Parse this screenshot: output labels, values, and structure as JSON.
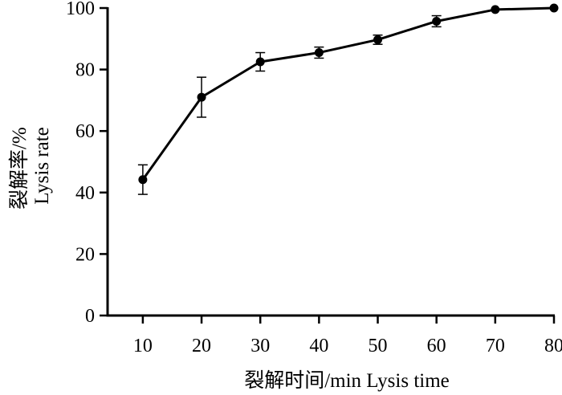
{
  "chart_data": {
    "type": "line",
    "title": "",
    "xlabel": "裂解时间/min  Lysis time",
    "ylabel_lines": [
      "裂解率/%",
      "Lysis rate"
    ],
    "x": [
      10,
      20,
      30,
      40,
      50,
      60,
      70,
      80
    ],
    "x_ticks": [
      10,
      20,
      30,
      40,
      50,
      60,
      70,
      80
    ],
    "y_ticks": [
      0,
      20,
      40,
      60,
      80,
      100
    ],
    "xlim": [
      4,
      80
    ],
    "ylim": [
      0,
      100
    ],
    "grid": false,
    "legend": "none",
    "series": [
      {
        "values": [
          44.2,
          71.0,
          82.5,
          85.5,
          89.7,
          95.7,
          99.5,
          100
        ],
        "error": [
          4.8,
          6.5,
          3.0,
          1.8,
          1.5,
          1.8,
          0,
          0
        ],
        "color": "#000000",
        "marker": "filled-circle"
      }
    ]
  }
}
